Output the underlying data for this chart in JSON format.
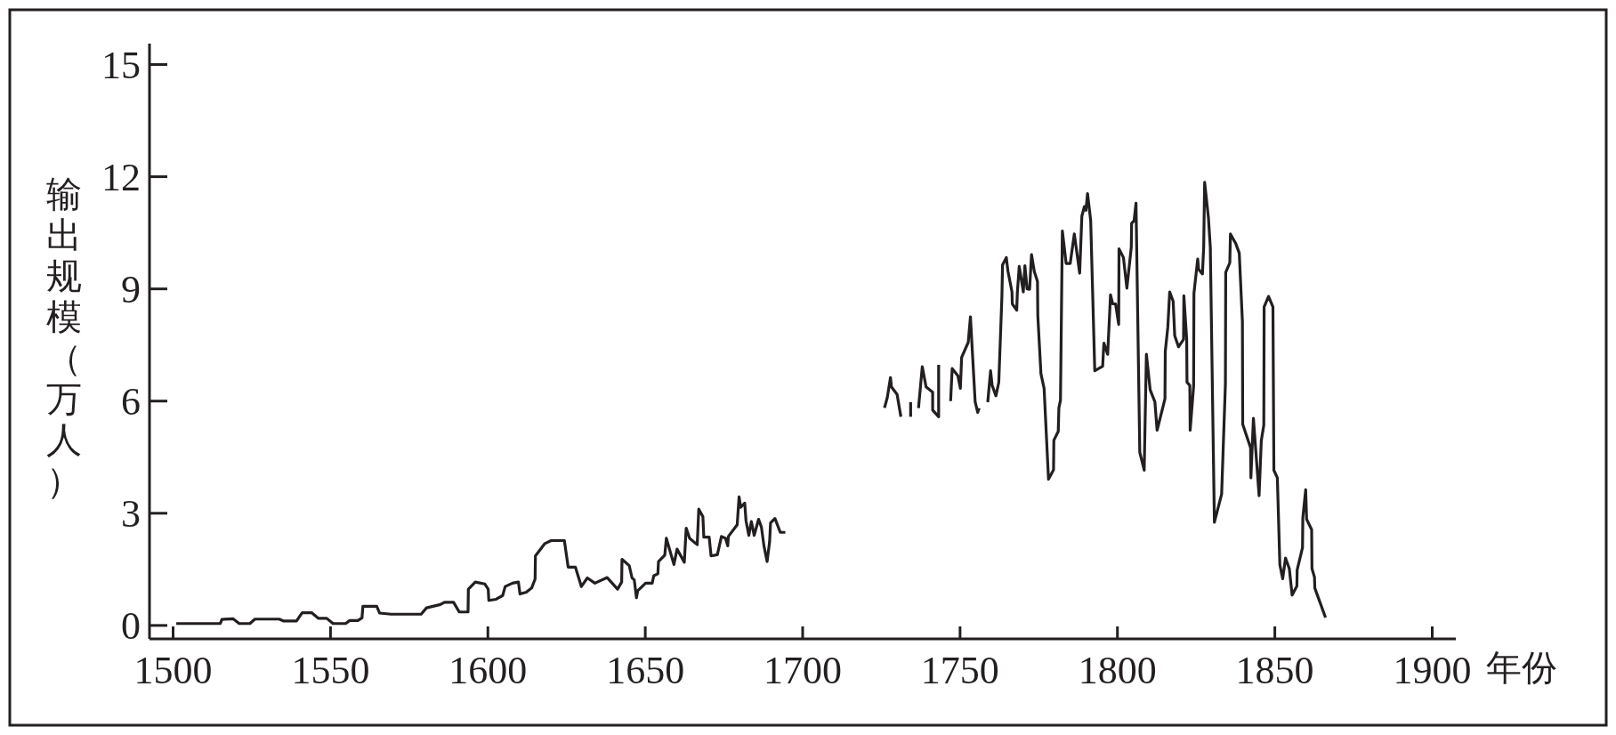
{
  "chart_data": {
    "type": "line",
    "xlabel": "年份",
    "ylabel": "输出规模（万人）",
    "grid": false,
    "marker": "none",
    "line_style": "solid",
    "xlim": [
      1492.5,
      1907.5
    ],
    "ylim": [
      -0.36,
      15.56
    ],
    "xticks": [
      1500,
      1550,
      1600,
      1650,
      1700,
      1750,
      1800,
      1850,
      1900
    ],
    "yticks": [
      0,
      3,
      6,
      9,
      12,
      15
    ],
    "series": [
      {
        "color": "#231f20",
        "x": [
          1501,
          1515,
          1515.5,
          1519,
          1521,
          1524.4,
          1526,
          1533.7,
          1535,
          1539.2,
          1541,
          1544,
          1546.2,
          1548.8,
          1550.8,
          1554.8,
          1556.1,
          1558.7,
          1560,
          1560.3,
          1564.7,
          1565.6,
          1569.3,
          1578.8,
          1580.5,
          1584.9,
          1586.2,
          1589.1,
          1590.9,
          1593.7,
          1593.8,
          1596,
          1599,
          1600.1,
          1600.3,
          1602.6,
          1604.7,
          1605.5,
          1607.8,
          1609.7,
          1610.2,
          1612.2,
          1613.9,
          1615,
          1615.1,
          1618.1,
          1620.1,
          1624.3,
          1625.5,
          1627.8,
          1629.7,
          1631.6,
          1634,
          1637.9,
          1641.2,
          1642.5,
          1642.6,
          1644.9,
          1645.8,
          1646.5,
          1647.2,
          1647.6,
          1650.1,
          1652.2,
          1652.7,
          1654,
          1654.2,
          1656.2,
          1656.7,
          1659.1,
          1660.1,
          1662.4,
          1663,
          1664.1,
          1666.5,
          1667,
          1668.3,
          1668.6,
          1670.3,
          1670.9,
          1672.9,
          1674.2,
          1675.5,
          1676.2,
          1676.4,
          1679.2,
          1679.8,
          1680.3,
          1681.6,
          1682,
          1682.9,
          1683.7,
          1684.6,
          1686,
          1686.9,
          1687.7,
          1688.7,
          1689.5,
          1689.8,
          1691.2,
          1692.9,
          1694.5
        ],
        "values": [
          0.05,
          0.05,
          0.16,
          0.18,
          0.05,
          0.05,
          0.17,
          0.17,
          0.12,
          0.12,
          0.34,
          0.34,
          0.19,
          0.19,
          0.05,
          0.05,
          0.13,
          0.13,
          0.2,
          0.51,
          0.51,
          0.33,
          0.3,
          0.3,
          0.47,
          0.56,
          0.62,
          0.62,
          0.36,
          0.36,
          0.97,
          1.16,
          1.11,
          0.97,
          0.67,
          0.7,
          0.8,
          1.04,
          1.13,
          1.16,
          0.84,
          0.89,
          1.0,
          1.24,
          1.86,
          2.19,
          2.27,
          2.27,
          1.56,
          1.56,
          1.04,
          1.27,
          1.13,
          1.28,
          0.97,
          1.16,
          1.77,
          1.6,
          1.27,
          1.22,
          0.74,
          0.93,
          1.13,
          1.13,
          1.33,
          1.38,
          1.71,
          1.88,
          2.33,
          1.63,
          2.04,
          1.69,
          2.6,
          2.33,
          2.16,
          3.11,
          2.91,
          2.36,
          2.36,
          1.86,
          1.89,
          2.38,
          2.33,
          2.13,
          2.38,
          2.69,
          3.44,
          3.16,
          3.27,
          2.8,
          2.41,
          2.78,
          2.41,
          2.84,
          2.63,
          2.13,
          1.71,
          2.24,
          2.74,
          2.86,
          2.49,
          2.49
        ]
      },
      {
        "color": "#231f20",
        "x": [
          1726,
          1726.9,
          1727.9,
          1728.2,
          1730,
          1731.2
        ],
        "values": [
          5.82,
          6.1,
          6.63,
          6.38,
          6.18,
          5.58
        ]
      },
      {
        "color": "#231f20",
        "x": [
          1734.3,
          1734.3
        ],
        "values": [
          5.97,
          5.58
        ]
      },
      {
        "color": "#231f20",
        "x": [
          1736.8,
          1738,
          1739.2,
          1741.3,
          1741.3,
          1743.2,
          1743.2
        ],
        "values": [
          5.81,
          6.92,
          6.38,
          6.24,
          5.76,
          5.58,
          6.97
        ]
      },
      {
        "color": "#231f20",
        "x": [
          1747,
          1747.5,
          1749.3,
          1750.1,
          1750.5,
          1752.6,
          1753.3,
          1754.8,
          1755.6,
          1756.1
        ],
        "values": [
          6.0,
          6.87,
          6.68,
          6.34,
          7.17,
          7.57,
          8.25,
          5.98,
          5.7,
          5.81
        ]
      },
      {
        "color": "#231f20",
        "x": [
          1758.8,
          1759.7,
          1760.2,
          1761.4,
          1762.3,
          1763.3,
          1763.5,
          1764.7,
          1765.2,
          1766.5,
          1766.6,
          1768,
          1768.2,
          1768.8,
          1770.1,
          1770.6,
          1771.3,
          1772.1,
          1772.7,
          1773.6,
          1774.6,
          1774.7,
          1775.7,
          1776.7,
          1778.1,
          1779.7,
          1779.8,
          1781.2,
          1781.4,
          1781.9,
          1782.5,
          1783.7,
          1785,
          1786.3,
          1788,
          1788.7,
          1789.5,
          1790,
          1790.5,
          1791.5,
          1792.8,
          1795.3,
          1795.7,
          1796.9,
          1797.8,
          1798.5,
          1799.4,
          1800.4,
          1800.5,
          1801.9,
          1803,
          1804.4,
          1804.5,
          1805.3,
          1805.9,
          1807.1,
          1808.5,
          1809.2,
          1810.4,
          1811.9,
          1812.6,
          1815.1,
          1815.2,
          1816,
          1816.6,
          1817.7,
          1818.2,
          1819.4,
          1821,
          1821.1,
          1822,
          1822.1,
          1823,
          1823.1,
          1824.2,
          1824.3,
          1825.5,
          1825.8,
          1827,
          1827.4,
          1827.7,
          1828.9,
          1829.5,
          1830.8,
          1833.1,
          1834.3,
          1834.4,
          1835.7,
          1835.9,
          1837.6,
          1838.7,
          1839.7,
          1839.8,
          1842.3,
          1842.4,
          1843.2,
          1845,
          1845.7,
          1846.5,
          1846.6,
          1848,
          1849.4,
          1849.7,
          1850.8,
          1851.6,
          1852.5,
          1853.4,
          1854.6,
          1855.5,
          1857,
          1857.1,
          1858.8,
          1858.9,
          1859.8,
          1860.1,
          1861.7,
          1861.8,
          1862.6,
          1862.7,
          1866.1
        ],
        "values": [
          5.97,
          6.81,
          6.42,
          6.14,
          6.5,
          8.8,
          9.64,
          9.84,
          9.48,
          8.92,
          8.6,
          8.43,
          8.9,
          9.6,
          8.92,
          9.62,
          9.0,
          8.99,
          9.92,
          9.46,
          9.2,
          8.29,
          6.73,
          6.34,
          3.91,
          4.16,
          4.95,
          5.19,
          5.82,
          6.02,
          10.55,
          9.68,
          9.68,
          10.47,
          9.42,
          10.95,
          11.2,
          11.1,
          11.55,
          10.83,
          6.81,
          6.93,
          7.55,
          7.25,
          8.84,
          8.6,
          8.6,
          8.05,
          10.07,
          9.84,
          9.02,
          10.12,
          10.75,
          10.83,
          11.29,
          4.63,
          4.15,
          7.25,
          6.3,
          5.98,
          5.22,
          6.06,
          7.33,
          7.97,
          8.92,
          8.67,
          7.75,
          7.45,
          7.65,
          8.82,
          7.65,
          6.5,
          6.42,
          5.22,
          6.4,
          8.88,
          9.8,
          9.52,
          9.4,
          10.12,
          11.85,
          10.91,
          10.12,
          2.76,
          3.51,
          6.46,
          9.44,
          9.7,
          10.47,
          10.21,
          9.96,
          8.13,
          5.38,
          4.75,
          3.95,
          5.54,
          3.47,
          4.94,
          5.36,
          8.52,
          8.8,
          8.52,
          4.15,
          3.95,
          1.62,
          1.25,
          1.8,
          1.52,
          0.81,
          1.05,
          1.49,
          2.08,
          2.88,
          3.63,
          2.84,
          2.56,
          1.52,
          1.29,
          1.0,
          0.21
        ]
      }
    ]
  }
}
